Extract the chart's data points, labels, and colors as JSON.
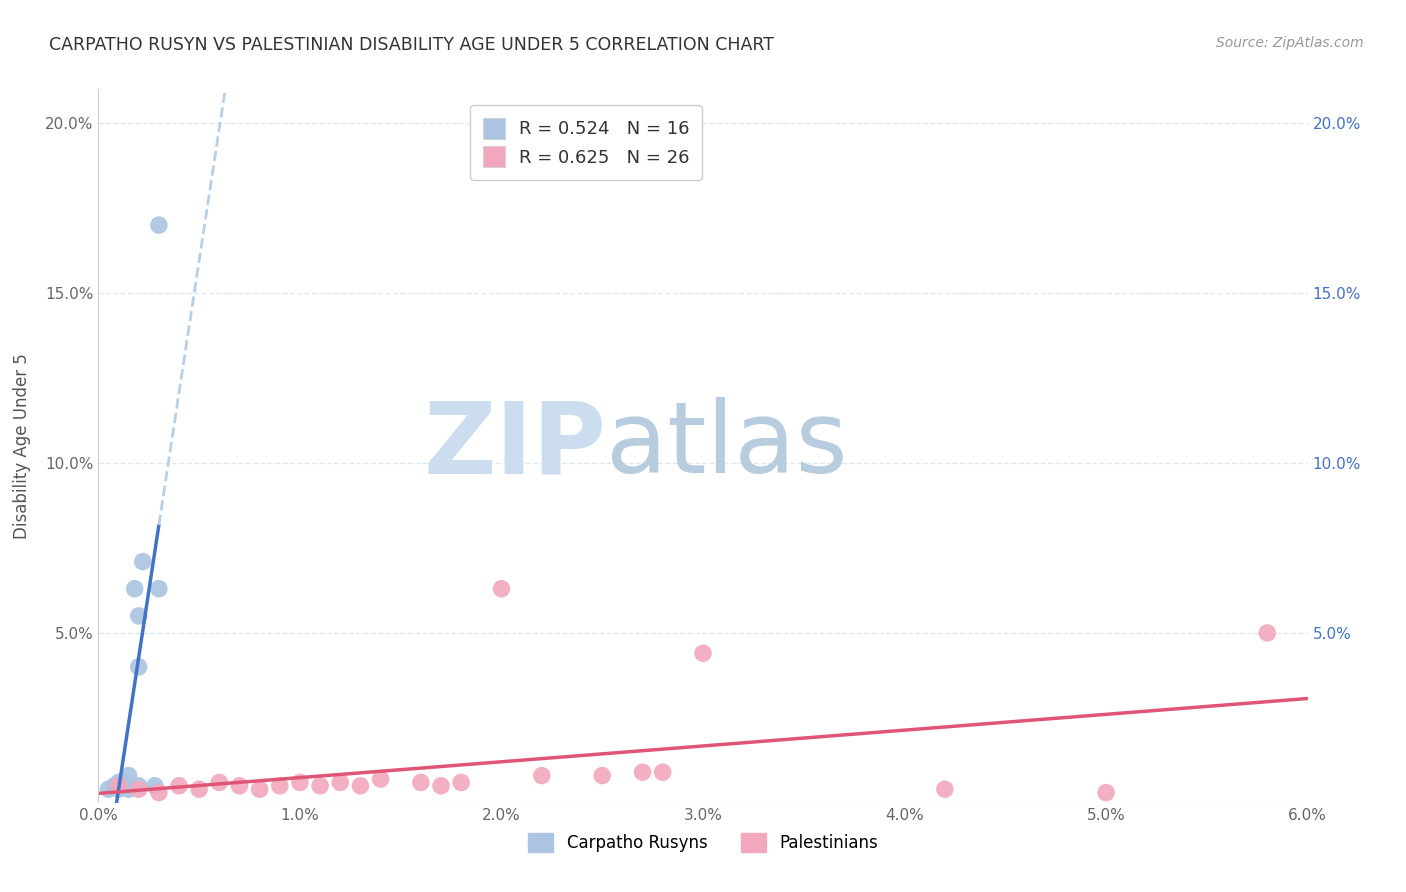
{
  "title": "CARPATHO RUSYN VS PALESTINIAN DISABILITY AGE UNDER 5 CORRELATION CHART",
  "source": "Source: ZipAtlas.com",
  "ylabel": "Disability Age Under 5",
  "xlim": [
    0.0,
    0.06
  ],
  "ylim": [
    0.0,
    0.21
  ],
  "xticks": [
    0.0,
    0.01,
    0.02,
    0.03,
    0.04,
    0.05,
    0.06
  ],
  "yticks": [
    0.0,
    0.05,
    0.1,
    0.15,
    0.2
  ],
  "xticklabels": [
    "0.0%",
    "1.0%",
    "2.0%",
    "3.0%",
    "4.0%",
    "5.0%",
    "6.0%"
  ],
  "yticklabels": [
    "",
    "5.0%",
    "10.0%",
    "15.0%",
    "20.0%"
  ],
  "legend_labels": [
    "Carpatho Rusyns",
    "Palestinians"
  ],
  "legend_r_n_blue": "R = 0.524   N = 16",
  "legend_r_n_pink": "R = 0.625   N = 26",
  "color_blue": "#aac4e2",
  "color_pink": "#f2a8bc",
  "line_blue": "#4472c4",
  "line_pink": "#e05575",
  "line_dashed_color": "#b8cfe8",
  "carpatho_x": [
    0.0005,
    0.0008,
    0.001,
    0.001,
    0.0012,
    0.0013,
    0.0015,
    0.0015,
    0.0018,
    0.002,
    0.002,
    0.002,
    0.0022,
    0.003,
    0.0028,
    0.003
  ],
  "carpatho_y": [
    0.004,
    0.005,
    0.006,
    0.004,
    0.005,
    0.006,
    0.008,
    0.004,
    0.063,
    0.055,
    0.04,
    0.005,
    0.071,
    0.063,
    0.005,
    0.17
  ],
  "palestinian_x": [
    0.001,
    0.002,
    0.003,
    0.004,
    0.005,
    0.006,
    0.007,
    0.008,
    0.009,
    0.01,
    0.011,
    0.012,
    0.013,
    0.014,
    0.016,
    0.017,
    0.018,
    0.02,
    0.022,
    0.025,
    0.027,
    0.028,
    0.03,
    0.042,
    0.05,
    0.058
  ],
  "palestinian_y": [
    0.005,
    0.004,
    0.003,
    0.005,
    0.004,
    0.006,
    0.005,
    0.004,
    0.005,
    0.006,
    0.005,
    0.006,
    0.005,
    0.007,
    0.006,
    0.005,
    0.006,
    0.063,
    0.008,
    0.008,
    0.009,
    0.009,
    0.044,
    0.004,
    0.003,
    0.05
  ],
  "background_color": "#ffffff",
  "grid_color": "#dce8f0",
  "watermark_zip_color": "#ccddf0",
  "watermark_atlas_color": "#b8ccdf"
}
